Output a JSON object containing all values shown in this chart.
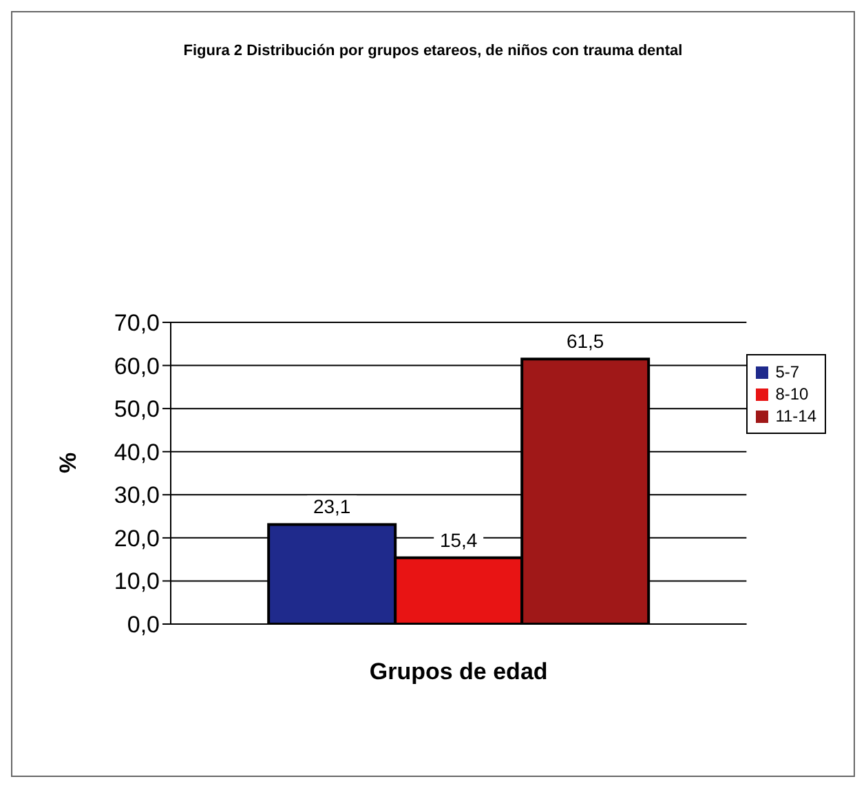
{
  "chart_data": {
    "type": "bar",
    "title": "Figura 2 Distribución por grupos etareos,  de niños con trauma dental",
    "xlabel": "Grupos de edad",
    "ylabel": "%",
    "categories": [
      null
    ],
    "series": [
      {
        "name": "5-7",
        "color": "#1f2a8c",
        "values": [
          23.1
        ],
        "value_labels": [
          "23,1"
        ]
      },
      {
        "name": "8-10",
        "color": "#e81414",
        "values": [
          15.4
        ],
        "value_labels": [
          "15,4"
        ]
      },
      {
        "name": "11-14",
        "color": "#a01818",
        "values": [
          61.5
        ],
        "value_labels": [
          "61,5"
        ]
      }
    ],
    "ylim": [
      0,
      70
    ],
    "yticks": [
      {
        "value": 0,
        "label": "0,0"
      },
      {
        "value": 10,
        "label": "10,0"
      },
      {
        "value": 20,
        "label": "20,0"
      },
      {
        "value": 30,
        "label": "30,0"
      },
      {
        "value": 40,
        "label": "40,0"
      },
      {
        "value": 50,
        "label": "50,0"
      },
      {
        "value": 60,
        "label": "60,0"
      },
      {
        "value": 70,
        "label": "70,0"
      }
    ],
    "grid": "y",
    "legend": "right"
  }
}
